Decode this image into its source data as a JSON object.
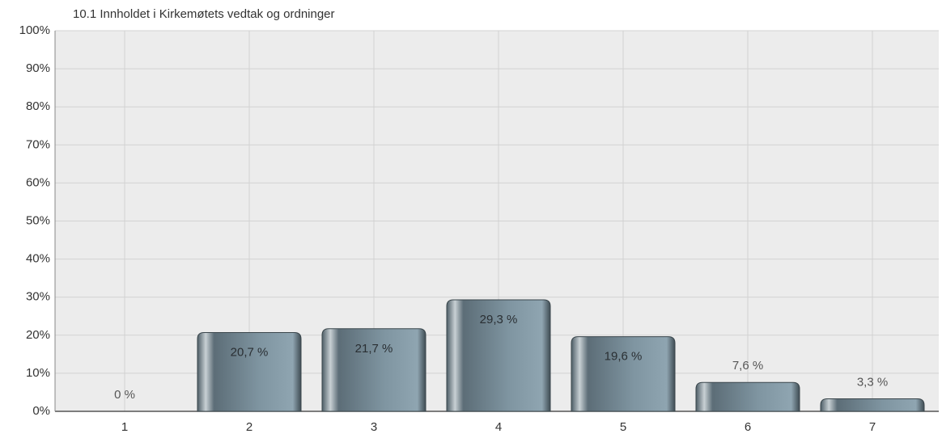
{
  "chart_data": {
    "type": "bar",
    "title": "10.1 Innholdet i Kirkemøtets vedtak og ordninger",
    "categories": [
      "1",
      "2",
      "3",
      "4",
      "5",
      "6",
      "7"
    ],
    "values": [
      0,
      20.7,
      21.7,
      29.3,
      19.6,
      7.6,
      3.3
    ],
    "value_labels": [
      "0 %",
      "20,7 %",
      "21,7 %",
      "29,3 %",
      "19,6 %",
      "7,6 %",
      "3,3 %"
    ],
    "color": "#6f8591",
    "ylim": [
      0,
      100
    ],
    "yticks": [
      {
        "value": 0,
        "label": "0%"
      },
      {
        "value": 10,
        "label": "10%"
      },
      {
        "value": 20,
        "label": "20%"
      },
      {
        "value": 30,
        "label": "30%"
      },
      {
        "value": 40,
        "label": "40%"
      },
      {
        "value": 50,
        "label": "50%"
      },
      {
        "value": 60,
        "label": "60%"
      },
      {
        "value": 70,
        "label": "70%"
      },
      {
        "value": 80,
        "label": "80%"
      },
      {
        "value": 90,
        "label": "90%"
      },
      {
        "value": 100,
        "label": "100%"
      }
    ],
    "grid": true
  }
}
